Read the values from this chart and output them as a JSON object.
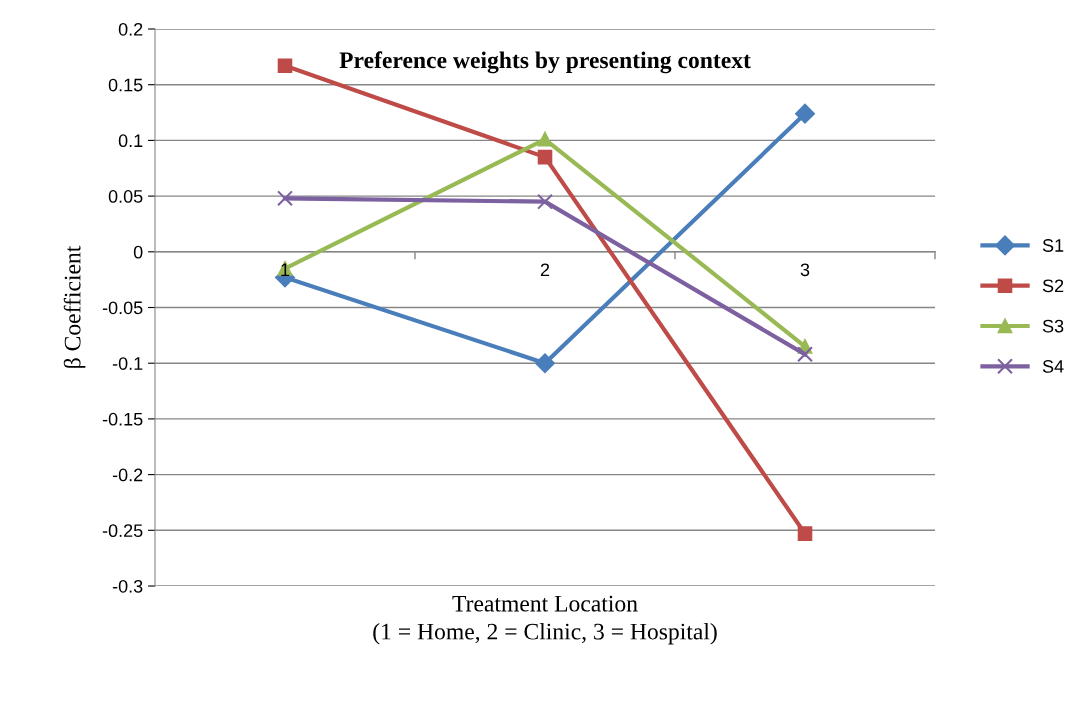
{
  "chart_data": {
    "type": "line",
    "title": "Preference weights by presenting context",
    "xlabel": "Treatment Location\n(1 = Home, 2 = Clinic, 3 = Hospital)",
    "ylabel": "β Coefficient",
    "categories": [
      "1",
      "2",
      "3"
    ],
    "series": [
      {
        "name": "S1",
        "color": "#4a7ebb",
        "marker": "diamond",
        "values": [
          -0.023,
          -0.1,
          0.124
        ]
      },
      {
        "name": "S2",
        "color": "#be4b48",
        "marker": "square",
        "values": [
          0.167,
          0.085,
          -0.253
        ]
      },
      {
        "name": "S3",
        "color": "#98b954",
        "marker": "triangle",
        "values": [
          -0.015,
          0.101,
          -0.085
        ]
      },
      {
        "name": "S4",
        "color": "#7d60a0",
        "marker": "cross",
        "values": [
          0.048,
          0.045,
          -0.092
        ]
      }
    ],
    "ylim": [
      -0.3,
      0.2
    ],
    "yticks": [
      -0.3,
      -0.25,
      -0.2,
      -0.15,
      -0.1,
      -0.05,
      0,
      0.05,
      0.1,
      0.15,
      0.2
    ],
    "grid": "y",
    "legend": "right",
    "line_style": "solid"
  }
}
